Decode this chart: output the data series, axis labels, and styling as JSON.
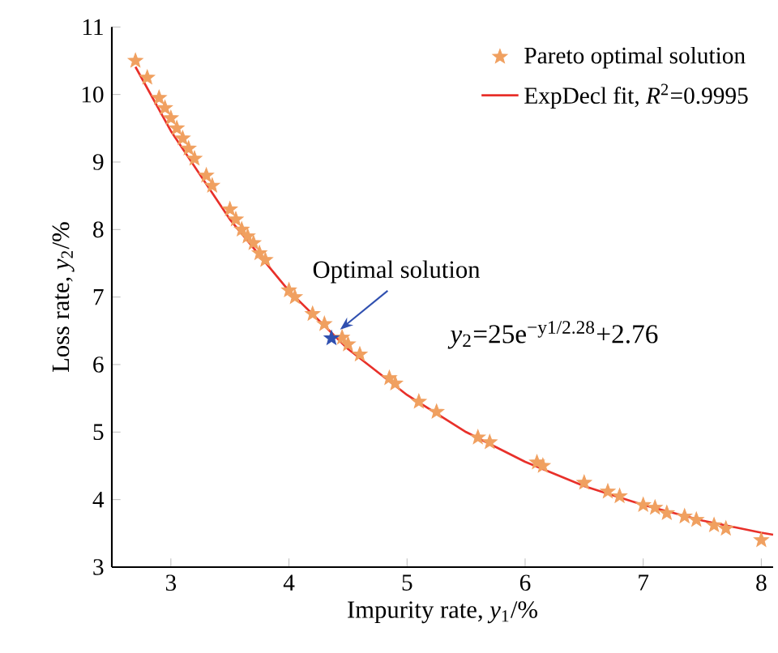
{
  "chart_data": {
    "type": "scatter",
    "xlabel": "Impurity rate, *y*$_{1}$/%",
    "ylabel": "Loss rate, *y*$_{2}$/%",
    "xlim": [
      2.5,
      8.1
    ],
    "ylim": [
      3,
      11
    ],
    "xticks": [
      3,
      4,
      5,
      6,
      7,
      8
    ],
    "yticks": [
      3,
      4,
      5,
      6,
      7,
      8,
      9,
      10,
      11
    ],
    "marker": "star",
    "legend": "top right",
    "grid": false,
    "series": [
      {
        "name": "Pareto optimal solution",
        "color": "#f0a060",
        "x": [
          2.7,
          2.8,
          2.9,
          2.95,
          3.0,
          3.05,
          3.1,
          3.15,
          3.2,
          3.3,
          3.35,
          3.5,
          3.55,
          3.6,
          3.65,
          3.7,
          3.75,
          3.8,
          4.0,
          4.05,
          4.2,
          4.3,
          4.45,
          4.5,
          4.6,
          4.85,
          4.9,
          5.1,
          5.25,
          5.6,
          5.7,
          6.1,
          6.15,
          6.5,
          6.7,
          6.8,
          7.0,
          7.1,
          7.2,
          7.35,
          7.45,
          7.6,
          7.7,
          8.0
        ],
        "values": [
          10.5,
          10.25,
          9.95,
          9.8,
          9.65,
          9.5,
          9.35,
          9.2,
          9.05,
          8.8,
          8.65,
          8.3,
          8.15,
          8.0,
          7.9,
          7.8,
          7.65,
          7.55,
          7.1,
          7.0,
          6.75,
          6.6,
          6.4,
          6.3,
          6.15,
          5.8,
          5.72,
          5.45,
          5.3,
          4.92,
          4.85,
          4.55,
          4.5,
          4.25,
          4.12,
          4.05,
          3.92,
          3.88,
          3.8,
          3.75,
          3.7,
          3.62,
          3.57,
          3.4
        ]
      },
      {
        "name": "ExpDecl fit, *R*$^{2}$=0.9995",
        "type": "line",
        "color": "#e8302a",
        "marker": "none",
        "x": [
          2.7,
          3,
          3.5,
          4,
          4.5,
          5,
          5.5,
          6,
          6.5,
          7,
          7.5,
          8,
          8.1
        ],
        "values": [
          10.41,
          9.46,
          8.15,
          7.09,
          6.23,
          5.55,
          5.0,
          4.56,
          4.2,
          3.92,
          3.69,
          3.51,
          3.48
        ]
      },
      {
        "color": "#3050b0",
        "x": [
          4.36
        ],
        "values": [
          6.39
        ]
      }
    ],
    "annotations": [
      {
        "text": "Optimal solution",
        "x": 4.36,
        "y": 6.39
      },
      "*y*$_{2}$=25e$^{−y1/2.28}$+2.76"
    ]
  }
}
